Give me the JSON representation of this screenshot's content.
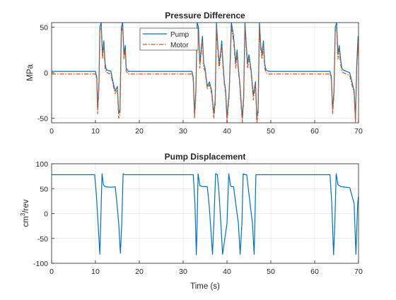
{
  "chart_data": [
    {
      "type": "line",
      "title": "Pressure Difference",
      "xlabel": "",
      "ylabel": "MPa",
      "xlim": [
        0,
        70
      ],
      "ylim": [
        -55,
        55
      ],
      "xticks": [
        "0",
        "10",
        "20",
        "30",
        "40",
        "50",
        "60",
        "70"
      ],
      "yticks": [
        "-50",
        "0",
        "50"
      ],
      "grid": true,
      "legend": "top-center",
      "series": [
        {
          "name": "Pump",
          "color": "#0072BD",
          "style": "solid",
          "x": [
            0,
            10.0,
            10.3,
            10.5,
            10.8,
            11.0,
            11.3,
            11.6,
            11.9,
            12.2,
            12.5,
            12.8,
            13.0,
            13.5,
            14.0,
            14.5,
            15.0,
            15.3,
            15.6,
            15.9,
            16.2,
            16.5,
            16.8,
            17.0,
            17.5,
            32.0,
            32.3,
            32.6,
            32.9,
            33.2,
            33.5,
            33.8,
            34.1,
            34.4,
            34.7,
            35.0,
            35.5,
            36.0,
            36.5,
            37.0,
            37.3,
            37.6,
            37.9,
            38.2,
            38.5,
            38.8,
            39.1,
            39.4,
            39.7,
            40.0,
            40.5,
            41.0,
            41.5,
            42.0,
            42.3,
            42.6,
            42.9,
            43.2,
            43.5,
            43.8,
            44.1,
            44.4,
            44.7,
            45.0,
            45.5,
            46.0,
            46.5,
            46.8,
            47.1,
            47.4,
            47.7,
            48.0,
            48.3,
            48.6,
            48.9,
            49.5,
            63.5,
            63.8,
            64.1,
            64.4,
            64.7,
            65.0,
            65.3,
            65.6,
            65.9,
            66.2,
            66.5,
            67.0,
            68.0,
            69.0,
            69.3,
            69.6,
            69.9,
            70.0
          ],
          "y": [
            1.5,
            1.5,
            -5,
            -40,
            -10,
            50,
            55,
            20,
            35,
            10,
            3,
            3,
            2,
            2,
            -10,
            -20,
            -15,
            -45,
            -40,
            50,
            55,
            20,
            30,
            5,
            1.5,
            1.5,
            -5,
            -45,
            -20,
            55,
            50,
            10,
            25,
            40,
            10,
            5,
            -15,
            -10,
            -20,
            -45,
            -30,
            55,
            30,
            10,
            20,
            35,
            10,
            -10,
            -20,
            -50,
            -20,
            55,
            40,
            10,
            25,
            5,
            -10,
            -30,
            -50,
            -25,
            55,
            30,
            10,
            20,
            3,
            -25,
            -10,
            -50,
            -40,
            55,
            30,
            20,
            35,
            10,
            3,
            1.5,
            1.5,
            -5,
            -40,
            -20,
            50,
            55,
            20,
            30,
            15,
            5,
            3,
            2,
            0,
            -20,
            -50,
            10,
            40,
            20
          ]
        },
        {
          "name": "Motor",
          "color": "#D95319",
          "style": "dash-dot",
          "x": [
            0,
            10.0,
            10.3,
            10.5,
            10.8,
            11.0,
            11.3,
            11.6,
            11.9,
            12.2,
            12.5,
            12.8,
            13.0,
            13.5,
            14.0,
            14.5,
            15.0,
            15.3,
            15.6,
            15.9,
            16.2,
            16.5,
            16.8,
            17.0,
            17.5,
            32.0,
            32.3,
            32.6,
            32.9,
            33.2,
            33.5,
            33.8,
            34.1,
            34.4,
            34.7,
            35.0,
            35.5,
            36.0,
            36.5,
            37.0,
            37.3,
            37.6,
            37.9,
            38.2,
            38.5,
            38.8,
            39.1,
            39.4,
            39.7,
            40.0,
            40.5,
            41.0,
            41.5,
            42.0,
            42.3,
            42.6,
            42.9,
            43.2,
            43.5,
            43.8,
            44.1,
            44.4,
            44.7,
            45.0,
            45.5,
            46.0,
            46.5,
            46.8,
            47.1,
            47.4,
            47.7,
            48.0,
            48.3,
            48.6,
            48.9,
            49.5,
            63.5,
            63.8,
            64.1,
            64.4,
            64.7,
            65.0,
            65.3,
            65.6,
            65.9,
            66.2,
            66.5,
            67.0,
            68.0,
            69.0,
            69.3,
            69.6,
            69.9,
            70.0
          ],
          "y": [
            -1.5,
            -1.5,
            -8,
            -45,
            -15,
            45,
            50,
            15,
            30,
            5,
            0,
            0,
            -1,
            -1,
            -13,
            -23,
            -18,
            -50,
            -45,
            45,
            50,
            15,
            25,
            2,
            -1.5,
            -1.5,
            -8,
            -50,
            -25,
            50,
            45,
            5,
            20,
            35,
            5,
            2,
            -18,
            -13,
            -23,
            -50,
            -35,
            50,
            25,
            5,
            15,
            30,
            5,
            -13,
            -23,
            -55,
            -25,
            50,
            35,
            5,
            20,
            2,
            -13,
            -35,
            -55,
            -30,
            50,
            25,
            5,
            15,
            0,
            -30,
            -13,
            -55,
            -45,
            50,
            25,
            15,
            30,
            5,
            0,
            -1.5,
            -1.5,
            -8,
            -45,
            -25,
            45,
            50,
            15,
            25,
            10,
            2,
            0,
            -1,
            -3,
            -23,
            -55,
            5,
            35,
            15
          ]
        }
      ]
    },
    {
      "type": "line",
      "title": "Pump Displacement",
      "xlabel": "Time (s)",
      "ylabel_base": "cm",
      "ylabel_sup": "3",
      "ylabel_rest": "/rev",
      "xlim": [
        0,
        70
      ],
      "ylim": [
        -100,
        100
      ],
      "xticks": [
        "0",
        "10",
        "20",
        "30",
        "40",
        "50",
        "60",
        "70"
      ],
      "yticks": [
        "-100",
        "-50",
        "0",
        "50",
        "100"
      ],
      "grid": true,
      "series": [
        {
          "color": "#0072BD",
          "style": "solid",
          "x": [
            0,
            9.8,
            10.2,
            10.6,
            11.0,
            11.2,
            11.5,
            11.8,
            12.2,
            13.0,
            14.0,
            14.5,
            14.9,
            15.3,
            15.7,
            16.0,
            16.3,
            16.7,
            17.0,
            32.3,
            32.7,
            33.0,
            33.2,
            33.4,
            33.8,
            34.5,
            35.5,
            35.9,
            36.3,
            36.7,
            37.0,
            37.4,
            37.8,
            38.2,
            38.6,
            39.0,
            40.0,
            40.4,
            40.8,
            41.0,
            41.2,
            41.5,
            42.0,
            42.6,
            43.0,
            43.4,
            43.7,
            44.0,
            44.5,
            45.0,
            45.8,
            46.2,
            46.6,
            47.0,
            47.3,
            47.6,
            47.9,
            48.5,
            63.5,
            63.9,
            64.3,
            64.6,
            64.9,
            65.3,
            66.0,
            67.0,
            68.0,
            69.0,
            69.4,
            69.8,
            70.0
          ],
          "y": [
            78,
            78,
            40,
            -20,
            -82,
            -20,
            80,
            58,
            54,
            53,
            53,
            54,
            20,
            -20,
            -80,
            -20,
            80,
            78,
            78,
            78,
            20,
            -83,
            -20,
            80,
            56,
            54,
            54,
            20,
            -30,
            -82,
            -20,
            80,
            78,
            40,
            -20,
            -82,
            -20,
            80,
            56,
            54,
            54,
            54,
            20,
            -20,
            -82,
            -20,
            80,
            78,
            78,
            40,
            -20,
            -82,
            78,
            78,
            78,
            78,
            78,
            78,
            78,
            20,
            -83,
            -20,
            80,
            58,
            54,
            53,
            52,
            20,
            -82,
            20,
            35
          ]
        }
      ]
    }
  ]
}
